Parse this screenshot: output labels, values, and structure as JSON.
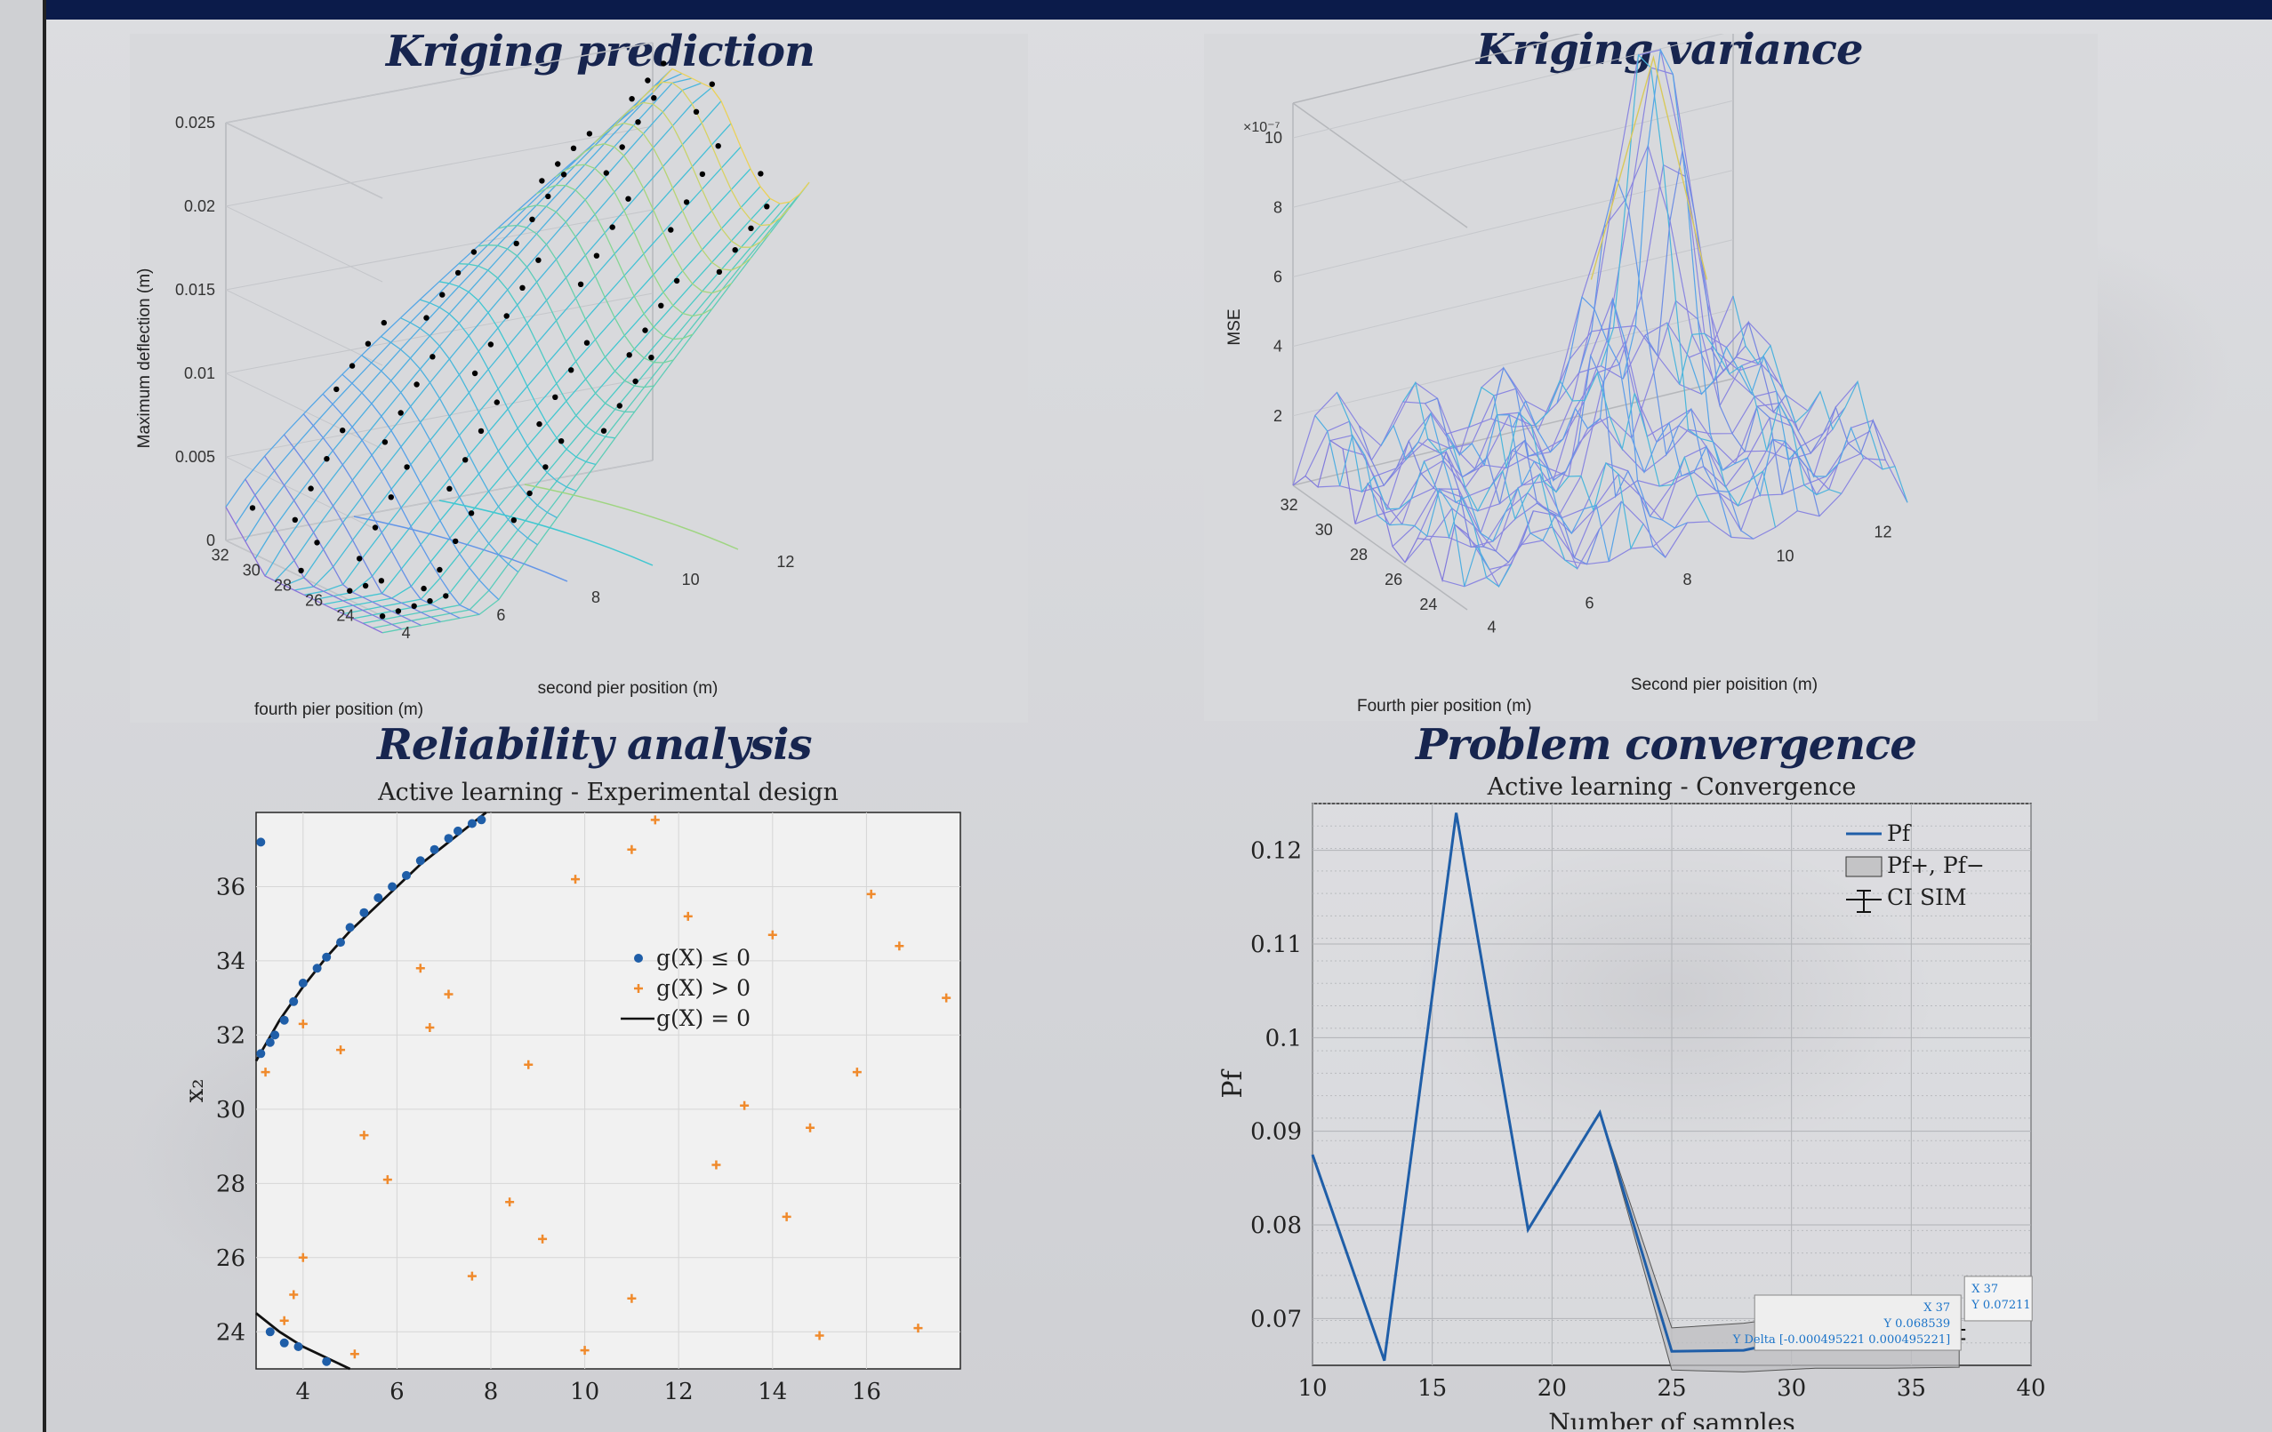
{
  "titles": {
    "top_left": "Kriging prediction",
    "top_right": "Kriging variance",
    "bottom_left": "Reliability analysis",
    "bottom_right": "Problem convergence"
  },
  "chart_data": [
    {
      "type": "surface",
      "xlabel": "second pier position (m)",
      "ylabel": "fourth pier position (m)",
      "zlabel": "Maximum deflection (m)",
      "xticks": [
        "4",
        "6",
        "8",
        "10",
        "12"
      ],
      "yticks": [
        "24",
        "26",
        "28",
        "30",
        "32"
      ],
      "zticks": [
        "0",
        "0.005",
        "0.01",
        "0.015",
        "0.02",
        "0.025"
      ],
      "zlim": [
        0,
        0.025
      ]
    },
    {
      "type": "surface",
      "xlabel": "Second pier poisition (m)",
      "ylabel": "Fourth pier position (m)",
      "zlabel": "MSE",
      "zscale_label": "×10⁻⁷",
      "xticks": [
        "4",
        "6",
        "8",
        "10",
        "12"
      ],
      "yticks": [
        "24",
        "26",
        "28",
        "30",
        "32"
      ],
      "zticks": [
        "2",
        "4",
        "6",
        "8",
        "10"
      ]
    },
    {
      "type": "scatter",
      "title": "Active learning - Experimental design",
      "xlabel": "x₁",
      "ylabel": "x₂",
      "xlim": [
        3,
        18
      ],
      "ylim": [
        23,
        38
      ],
      "xticks": [
        "4",
        "6",
        "8",
        "10",
        "12",
        "14",
        "16"
      ],
      "yticks": [
        "24",
        "26",
        "28",
        "30",
        "32",
        "34",
        "36"
      ],
      "legend": [
        "g(X) ≤ 0",
        "g(X) > 0",
        "g(X) = 0"
      ],
      "series": [
        {
          "name": "g(X) ≤ 0",
          "points": [
            [
              3.1,
              37.2
            ],
            [
              3.1,
              31.5
            ],
            [
              3.3,
              31.8
            ],
            [
              3.4,
              32.0
            ],
            [
              3.6,
              32.4
            ],
            [
              3.8,
              32.9
            ],
            [
              4.0,
              33.4
            ],
            [
              4.3,
              33.8
            ],
            [
              4.5,
              34.1
            ],
            [
              4.8,
              34.5
            ],
            [
              5.0,
              34.9
            ],
            [
              5.3,
              35.3
            ],
            [
              5.6,
              35.7
            ],
            [
              5.9,
              36.0
            ],
            [
              6.2,
              36.3
            ],
            [
              6.5,
              36.7
            ],
            [
              6.8,
              37.0
            ],
            [
              7.1,
              37.3
            ],
            [
              7.3,
              37.5
            ],
            [
              7.6,
              37.7
            ],
            [
              7.8,
              37.8
            ],
            [
              3.3,
              24.0
            ],
            [
              3.6,
              23.7
            ],
            [
              3.9,
              23.6
            ],
            [
              4.5,
              23.2
            ]
          ]
        },
        {
          "name": "g(X) > 0",
          "points": [
            [
              11.5,
              37.8
            ],
            [
              9.8,
              36.2
            ],
            [
              11.0,
              37.0
            ],
            [
              12.2,
              35.2
            ],
            [
              14.0,
              34.7
            ],
            [
              16.1,
              35.8
            ],
            [
              16.7,
              34.4
            ],
            [
              17.7,
              33.0
            ],
            [
              6.5,
              33.8
            ],
            [
              7.1,
              33.1
            ],
            [
              6.7,
              32.2
            ],
            [
              4.0,
              32.3
            ],
            [
              4.8,
              31.6
            ],
            [
              3.2,
              31.0
            ],
            [
              8.8,
              31.2
            ],
            [
              13.4,
              30.1
            ],
            [
              15.8,
              31.0
            ],
            [
              14.8,
              29.5
            ],
            [
              5.3,
              29.3
            ],
            [
              5.8,
              28.1
            ],
            [
              12.8,
              28.5
            ],
            [
              8.4,
              27.5
            ],
            [
              9.1,
              26.5
            ],
            [
              14.3,
              27.1
            ],
            [
              4.0,
              26.0
            ],
            [
              7.6,
              25.5
            ],
            [
              3.8,
              25.0
            ],
            [
              11.0,
              24.9
            ],
            [
              3.6,
              24.3
            ],
            [
              15.0,
              23.9
            ],
            [
              17.1,
              24.1
            ],
            [
              10.0,
              23.5
            ],
            [
              5.1,
              23.4
            ]
          ]
        },
        {
          "name": "g(X) = 0",
          "curve": [
            [
              3.0,
              31.3
            ],
            [
              3.5,
              32.4
            ],
            [
              4.0,
              33.3
            ],
            [
              4.5,
              34.1
            ],
            [
              5.0,
              34.8
            ],
            [
              5.5,
              35.4
            ],
            [
              6.0,
              36.0
            ],
            [
              6.5,
              36.6
            ],
            [
              7.0,
              37.1
            ],
            [
              7.5,
              37.6
            ],
            [
              7.9,
              38.0
            ]
          ],
          "curve2": [
            [
              3.0,
              24.5
            ],
            [
              3.5,
              24.0
            ],
            [
              4.0,
              23.6
            ],
            [
              4.5,
              23.3
            ],
            [
              5.0,
              23.0
            ]
          ]
        }
      ]
    },
    {
      "type": "line",
      "title": "Active learning - Convergence",
      "xlabel": "Number of samples",
      "ylabel": "Pf",
      "xlim": [
        10,
        40
      ],
      "ylim": [
        0.065,
        0.125
      ],
      "xticks": [
        "10",
        "15",
        "20",
        "25",
        "30",
        "35",
        "40"
      ],
      "yticks": [
        "0.07",
        "0.08",
        "0.09",
        "0.1",
        "0.11",
        "0.12"
      ],
      "legend": [
        "Pf",
        "Pf+, Pf−",
        "CI SIM"
      ],
      "x": [
        10,
        13,
        16,
        19,
        22,
        25,
        28,
        31,
        34,
        37
      ],
      "series": [
        {
          "name": "Pf",
          "values": [
            0.0875,
            0.0655,
            0.124,
            0.0795,
            0.092,
            0.0665,
            0.0666,
            0.0682,
            0.0683,
            0.0683
          ]
        },
        {
          "name": "Pf+",
          "values": [
            null,
            null,
            null,
            null,
            0.092,
            0.069,
            0.0695,
            0.0705,
            0.0705,
            0.0705
          ]
        },
        {
          "name": "Pf−",
          "values": [
            null,
            null,
            null,
            null,
            0.092,
            0.0645,
            0.0643,
            0.0647,
            0.0647,
            0.0648
          ]
        }
      ],
      "datatips": {
        "tip1_x": "X 37",
        "tip1_y": "Y 0.07211",
        "tip2_x": "X 37",
        "tip2_y": "Y 0.068539",
        "tip_delta": "Y Delta [-0.000495221 0.000495221]"
      }
    }
  ]
}
